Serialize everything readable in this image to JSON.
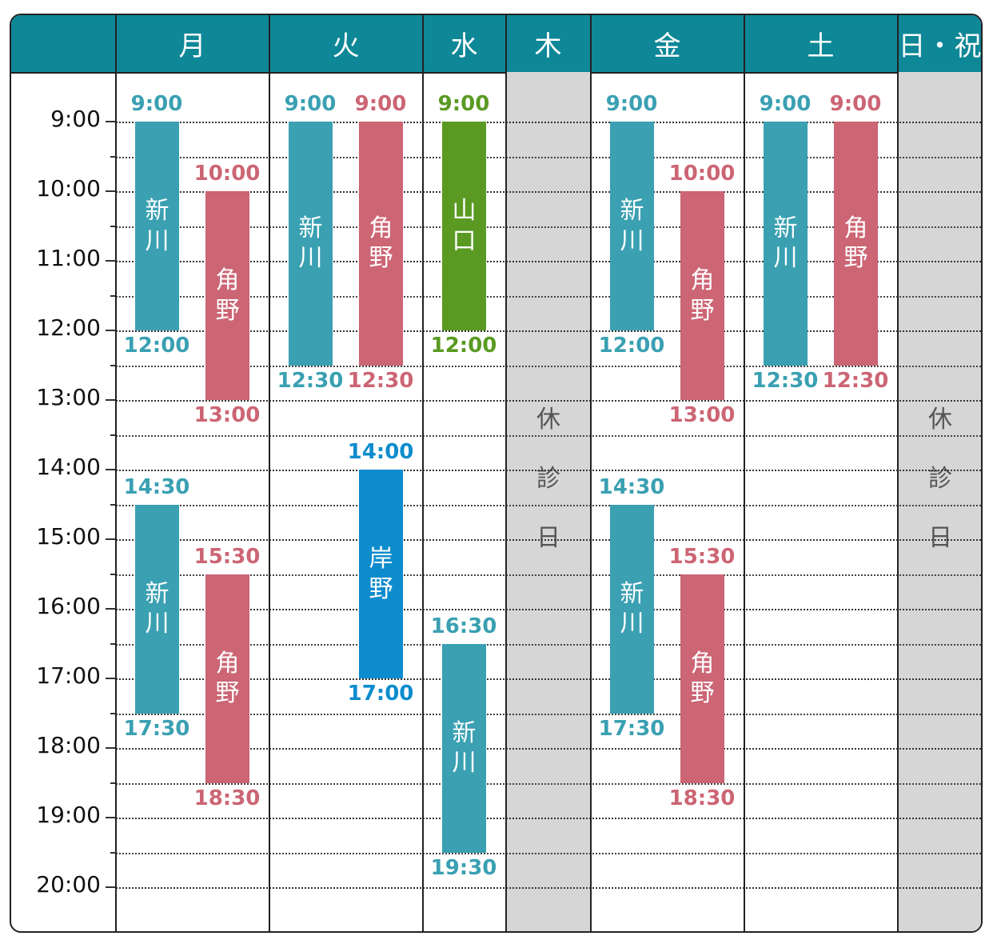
{
  "colors": {
    "header": "#0e8797",
    "teal": "#3aa0b2",
    "pink": "#cc6574",
    "green": "#5a9a22",
    "blue": "#0d8ccd",
    "closed": "#d6d6d6"
  },
  "days": [
    {
      "key": "mon",
      "label": "月"
    },
    {
      "key": "tue",
      "label": "火"
    },
    {
      "key": "wed",
      "label": "水"
    },
    {
      "key": "thu",
      "label": "木"
    },
    {
      "key": "fri",
      "label": "金"
    },
    {
      "key": "sat",
      "label": "土"
    },
    {
      "key": "sun",
      "label": "日・祝"
    }
  ],
  "times": [
    "9:00",
    "10:00",
    "11:00",
    "12:00",
    "13:00",
    "14:00",
    "15:00",
    "16:00",
    "17:00",
    "18:00",
    "19:00",
    "20:00"
  ],
  "closed_label": [
    "休",
    "診",
    "日"
  ],
  "closed_days": [
    "thu",
    "sun"
  ],
  "shifts": [
    {
      "day": "mon",
      "lane": 0,
      "doctor": [
        "新",
        "川"
      ],
      "start": 9,
      "end": 12,
      "start_label": "9:00",
      "end_label": "12:00",
      "color": "teal"
    },
    {
      "day": "mon",
      "lane": 1,
      "doctor": [
        "角",
        "野"
      ],
      "start": 10,
      "end": 13,
      "start_label": "10:00",
      "end_label": "13:00",
      "color": "pink"
    },
    {
      "day": "mon",
      "lane": 0,
      "doctor": [
        "新",
        "川"
      ],
      "start": 14.5,
      "end": 17.5,
      "start_label": "14:30",
      "end_label": "17:30",
      "color": "teal"
    },
    {
      "day": "mon",
      "lane": 1,
      "doctor": [
        "角",
        "野"
      ],
      "start": 15.5,
      "end": 18.5,
      "start_label": "15:30",
      "end_label": "18:30",
      "color": "pink"
    },
    {
      "day": "tue",
      "lane": 0,
      "doctor": [
        "新",
        "川"
      ],
      "start": 9,
      "end": 12.5,
      "start_label": "9:00",
      "end_label": "12:30",
      "color": "teal"
    },
    {
      "day": "tue",
      "lane": 1,
      "doctor": [
        "角",
        "野"
      ],
      "start": 9,
      "end": 12.5,
      "start_label": "9:00",
      "end_label": "12:30",
      "color": "pink"
    },
    {
      "day": "tue",
      "lane": 1,
      "doctor": [
        "岸",
        "野"
      ],
      "start": 14,
      "end": 17,
      "start_label": "14:00",
      "end_label": "17:00",
      "color": "blue"
    },
    {
      "day": "wed",
      "lane": 0,
      "doctor": [
        "山",
        "口"
      ],
      "start": 9,
      "end": 12,
      "start_label": "9:00",
      "end_label": "12:00",
      "color": "green"
    },
    {
      "day": "wed",
      "lane": 0,
      "doctor": [
        "新",
        "川"
      ],
      "start": 16.5,
      "end": 19.5,
      "start_label": "16:30",
      "end_label": "19:30",
      "color": "teal"
    },
    {
      "day": "fri",
      "lane": 0,
      "doctor": [
        "新",
        "川"
      ],
      "start": 9,
      "end": 12,
      "start_label": "9:00",
      "end_label": "12:00",
      "color": "teal"
    },
    {
      "day": "fri",
      "lane": 1,
      "doctor": [
        "角",
        "野"
      ],
      "start": 10,
      "end": 13,
      "start_label": "10:00",
      "end_label": "13:00",
      "color": "pink"
    },
    {
      "day": "fri",
      "lane": 0,
      "doctor": [
        "新",
        "川"
      ],
      "start": 14.5,
      "end": 17.5,
      "start_label": "14:30",
      "end_label": "17:30",
      "color": "teal"
    },
    {
      "day": "fri",
      "lane": 1,
      "doctor": [
        "角",
        "野"
      ],
      "start": 15.5,
      "end": 18.5,
      "start_label": "15:30",
      "end_label": "18:30",
      "color": "pink"
    },
    {
      "day": "sat",
      "lane": 0,
      "doctor": [
        "新",
        "川"
      ],
      "start": 9,
      "end": 12.5,
      "start_label": "9:00",
      "end_label": "12:30",
      "color": "teal"
    },
    {
      "day": "sat",
      "lane": 1,
      "doctor": [
        "角",
        "野"
      ],
      "start": 9,
      "end": 12.5,
      "start_label": "9:00",
      "end_label": "12:30",
      "color": "pink"
    }
  ]
}
